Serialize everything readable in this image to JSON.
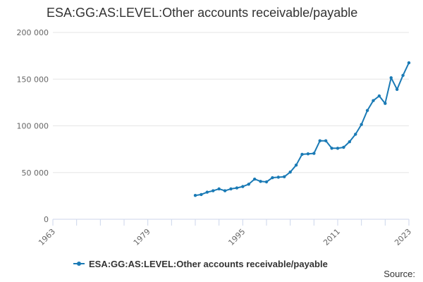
{
  "chart_data": {
    "type": "line",
    "title": "ESA:GG:AS:LEVEL:Other accounts receivable/payable",
    "xlabel": "",
    "ylabel": "",
    "xlim": [
      1963,
      2023
    ],
    "ylim": [
      0,
      200000
    ],
    "x_ticks": [
      "1963",
      "1979",
      "1995",
      "2011",
      "2023"
    ],
    "y_ticks": [
      "0",
      "50 000",
      "100 000",
      "150 000",
      "200 000"
    ],
    "grid": true,
    "legend_position": "bottom",
    "series": [
      {
        "name": "ESA:GG:AS:LEVEL:Other accounts receivable/payable",
        "color": "#1a7ab5",
        "x": [
          1987,
          1988,
          1989,
          1990,
          1991,
          1992,
          1993,
          1994,
          1995,
          1996,
          1997,
          1998,
          1999,
          2000,
          2001,
          2002,
          2003,
          2004,
          2005,
          2006,
          2007,
          2008,
          2009,
          2010,
          2011,
          2012,
          2013,
          2014,
          2015,
          2016,
          2017,
          2018,
          2019,
          2020,
          2021,
          2022,
          2023
        ],
        "y": [
          25500,
          26500,
          29000,
          30500,
          32500,
          30500,
          32500,
          33500,
          35000,
          37500,
          43000,
          40500,
          40000,
          44500,
          45000,
          45500,
          50500,
          58000,
          69500,
          70000,
          70500,
          84000,
          84000,
          76000,
          76000,
          77000,
          83000,
          91000,
          101500,
          116500,
          127000,
          132000,
          124000,
          151500,
          139000,
          154000,
          167500
        ]
      }
    ]
  },
  "source_label": "Source:"
}
